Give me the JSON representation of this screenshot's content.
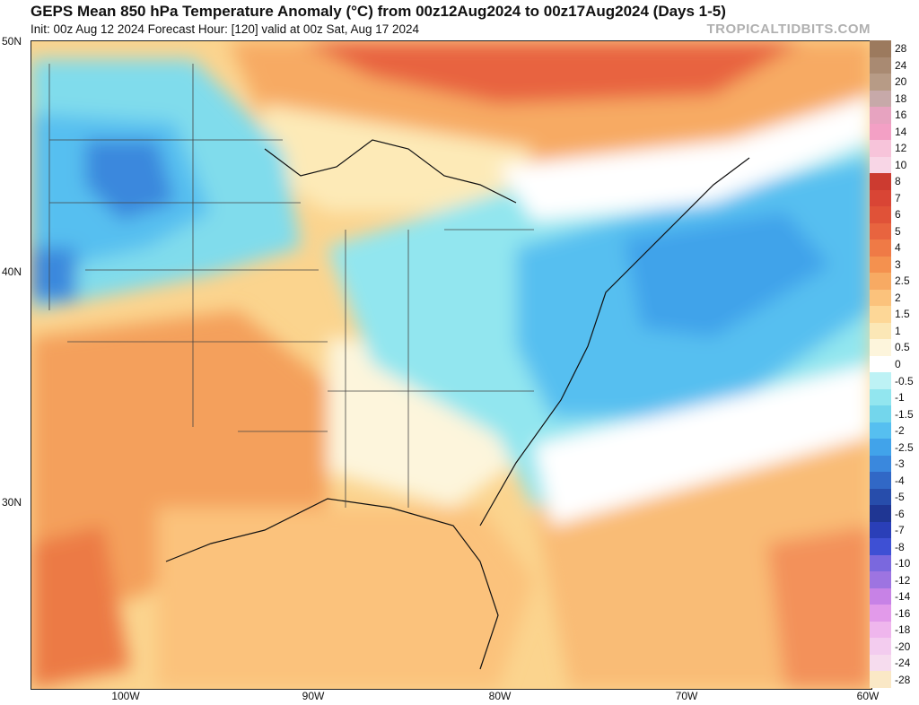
{
  "header": {
    "title": "GEPS Mean 850 hPa Temperature Anomaly (°C) from 00z12Aug2024 to 00z17Aug2024 (Days 1-5)",
    "subtitle": "Init: 00z Aug 12 2024   Forecast Hour: [120]   valid at 00z Sat, Aug 17 2024",
    "brand": "TROPICALTIDBITS.COM"
  },
  "axes": {
    "lat_labels": [
      "50N",
      "40N",
      "30N"
    ],
    "lon_labels": [
      "100W",
      "90W",
      "80W",
      "70W",
      "60W"
    ]
  },
  "colorbar": {
    "labels": [
      "28",
      "24",
      "20",
      "18",
      "16",
      "14",
      "12",
      "10",
      "8",
      "7",
      "6",
      "5",
      "4",
      "3",
      "2.5",
      "2",
      "1.5",
      "1",
      "0.5",
      "0",
      "-0.5",
      "-1",
      "-1.5",
      "-2",
      "-2.5",
      "-3",
      "-4",
      "-5",
      "-6",
      "-7",
      "-8",
      "-10",
      "-12",
      "-14",
      "-16",
      "-18",
      "-20",
      "-24",
      "-28"
    ],
    "colors": [
      "#9c7a5e",
      "#a98a72",
      "#b79b86",
      "#c7a9a9",
      "#e7a3c0",
      "#f3a0c5",
      "#f7c4da",
      "#f8d6e6",
      "#cc3b30",
      "#d94535",
      "#e05238",
      "#e8643f",
      "#ef7a46",
      "#f4914f",
      "#f7aa63",
      "#fbc27c",
      "#fdd797",
      "#fbe7b6",
      "#fdf5dc",
      "#ffffff",
      "#bdf2f5",
      "#92e6ef",
      "#73d6ec",
      "#56bff0",
      "#41a3ea",
      "#3a88dd",
      "#3168c6",
      "#274dab",
      "#1f3693",
      "#2a3fb8",
      "#3e50d4",
      "#7a68de",
      "#9d74e1",
      "#c782e6",
      "#e29aea",
      "#efb6ed",
      "#f3ccef",
      "#f6dcee",
      "#fae8c6"
    ]
  },
  "chart_data": {
    "type": "heatmap",
    "title": "GEPS Mean 850 hPa Temperature Anomaly (°C) from 00z12Aug2024 to 00z17Aug2024 (Days 1-5)",
    "units": "°C",
    "color_scale_min": -28,
    "color_scale_max": 28,
    "x_axis_ticks": [
      "100W",
      "90W",
      "80W",
      "70W",
      "60W"
    ],
    "y_axis_ticks": [
      "50N",
      "40N",
      "30N"
    ]
  }
}
